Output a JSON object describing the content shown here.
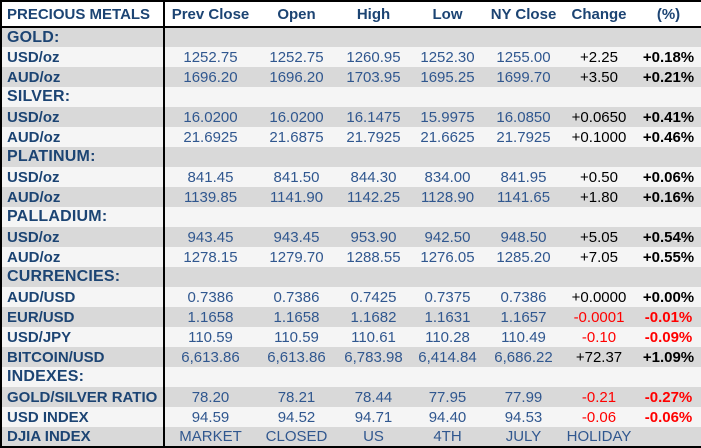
{
  "table": {
    "title_column": "PRECIOUS METALS",
    "columns": [
      "Prev Close",
      "Open",
      "High",
      "Low",
      "NY Close",
      "Change",
      "(%)"
    ],
    "colors": {
      "label_blue": "#1c4473",
      "number_blue": "#30578f",
      "negative_red": "#ff0000",
      "positive_black": "#000000",
      "row_gray": "#d9d9d9",
      "row_light": "#f5f5f5",
      "border_black": "#000000"
    },
    "rows": [
      {
        "type": "section",
        "label": "GOLD:",
        "shade": "gray",
        "cells": [
          "",
          "",
          "",
          "",
          "",
          "",
          ""
        ],
        "styles": [
          "num",
          "num",
          "num",
          "num",
          "num",
          "chg-pos",
          "pct-pos"
        ]
      },
      {
        "type": "data",
        "label": "USD/oz",
        "shade": "light",
        "cells": [
          "1252.75",
          "1252.75",
          "1260.95",
          "1252.30",
          "1255.00",
          "+2.25",
          "+0.18%"
        ],
        "styles": [
          "num",
          "num",
          "num",
          "num",
          "num",
          "chg-pos",
          "pct-pos"
        ]
      },
      {
        "type": "data",
        "label": "AUD/oz",
        "shade": "gray",
        "cells": [
          "1696.20",
          "1696.20",
          "1703.95",
          "1695.25",
          "1699.70",
          "+3.50",
          "+0.21%"
        ],
        "styles": [
          "num",
          "num",
          "num",
          "num",
          "num",
          "chg-pos",
          "pct-pos"
        ]
      },
      {
        "type": "section",
        "label": "SILVER:",
        "shade": "light",
        "cells": [
          "",
          "",
          "",
          "",
          "",
          "",
          ""
        ],
        "styles": [
          "num",
          "num",
          "num",
          "num",
          "num",
          "chg-pos",
          "pct-pos"
        ]
      },
      {
        "type": "data",
        "label": "USD/oz",
        "shade": "gray",
        "cells": [
          "16.0200",
          "16.0200",
          "16.1475",
          "15.9975",
          "16.0850",
          "+0.0650",
          "+0.41%"
        ],
        "styles": [
          "num",
          "num",
          "num",
          "num",
          "num",
          "chg-pos",
          "pct-pos"
        ]
      },
      {
        "type": "data",
        "label": "AUD/oz",
        "shade": "light",
        "cells": [
          "21.6925",
          "21.6875",
          "21.7925",
          "21.6625",
          "21.7925",
          "+0.1000",
          "+0.46%"
        ],
        "styles": [
          "num",
          "num",
          "num",
          "num",
          "num",
          "chg-pos",
          "pct-pos"
        ]
      },
      {
        "type": "section",
        "label": "PLATINUM:",
        "shade": "gray",
        "cells": [
          "",
          "",
          "",
          "",
          "",
          "",
          ""
        ],
        "styles": [
          "num",
          "num",
          "num",
          "num",
          "num",
          "chg-pos",
          "pct-pos"
        ]
      },
      {
        "type": "data",
        "label": "USD/oz",
        "shade": "light",
        "cells": [
          "841.45",
          "841.50",
          "844.30",
          "834.00",
          "841.95",
          "+0.50",
          "+0.06%"
        ],
        "styles": [
          "num",
          "num",
          "num",
          "num",
          "num",
          "chg-pos",
          "pct-pos"
        ]
      },
      {
        "type": "data",
        "label": "AUD/oz",
        "shade": "gray",
        "cells": [
          "1139.85",
          "1141.90",
          "1142.25",
          "1128.90",
          "1141.65",
          "+1.80",
          "+0.16%"
        ],
        "styles": [
          "num",
          "num",
          "num",
          "num",
          "num",
          "chg-pos",
          "pct-pos"
        ]
      },
      {
        "type": "section",
        "label": "PALLADIUM:",
        "shade": "light",
        "cells": [
          "",
          "",
          "",
          "",
          "",
          "",
          ""
        ],
        "styles": [
          "num",
          "num",
          "num",
          "num",
          "num",
          "chg-pos",
          "pct-pos"
        ]
      },
      {
        "type": "data",
        "label": "USD/oz",
        "shade": "gray",
        "cells": [
          "943.45",
          "943.45",
          "953.90",
          "942.50",
          "948.50",
          "+5.05",
          "+0.54%"
        ],
        "styles": [
          "num",
          "num",
          "num",
          "num",
          "num",
          "chg-pos",
          "pct-pos"
        ]
      },
      {
        "type": "data",
        "label": "AUD/oz",
        "shade": "light",
        "cells": [
          "1278.15",
          "1279.70",
          "1288.55",
          "1276.05",
          "1285.20",
          "+7.05",
          "+0.55%"
        ],
        "styles": [
          "num",
          "num",
          "num",
          "num",
          "num",
          "chg-pos",
          "pct-pos"
        ]
      },
      {
        "type": "section",
        "label": "CURRENCIES:",
        "shade": "gray",
        "cells": [
          "",
          "",
          "",
          "",
          "",
          "",
          ""
        ],
        "styles": [
          "num",
          "num",
          "num",
          "num",
          "num",
          "chg-pos",
          "pct-pos"
        ]
      },
      {
        "type": "data",
        "label": "AUD/USD",
        "shade": "light",
        "cells": [
          "0.7386",
          "0.7386",
          "0.7425",
          "0.7375",
          "0.7386",
          "+0.0000",
          "+0.00%"
        ],
        "styles": [
          "num",
          "num",
          "num",
          "num",
          "num",
          "chg-pos",
          "pct-pos"
        ]
      },
      {
        "type": "data",
        "label": "EUR/USD",
        "shade": "gray",
        "cells": [
          "1.1658",
          "1.1658",
          "1.1682",
          "1.1631",
          "1.1657",
          "-0.0001",
          "-0.01%"
        ],
        "styles": [
          "num",
          "num",
          "num",
          "num",
          "num",
          "chg-neg",
          "pct-neg"
        ]
      },
      {
        "type": "data",
        "label": "USD/JPY",
        "shade": "light",
        "cells": [
          "110.59",
          "110.59",
          "110.61",
          "110.28",
          "110.49",
          "-0.10",
          "-0.09%"
        ],
        "styles": [
          "num",
          "num",
          "num",
          "num",
          "num",
          "chg-neg",
          "pct-neg"
        ]
      },
      {
        "type": "data",
        "label": "BITCOIN/USD",
        "shade": "gray",
        "cells": [
          "6,613.86",
          "6,613.86",
          "6,783.98",
          "6,414.84",
          "6,686.22",
          "+72.37",
          "+1.09%"
        ],
        "styles": [
          "num",
          "num",
          "num",
          "num",
          "num",
          "chg-pos",
          "pct-pos"
        ]
      },
      {
        "type": "section",
        "label": "INDEXES:",
        "shade": "light",
        "cells": [
          "",
          "",
          "",
          "",
          "",
          "",
          ""
        ],
        "styles": [
          "num",
          "num",
          "num",
          "num",
          "num",
          "chg-pos",
          "pct-pos"
        ]
      },
      {
        "type": "data",
        "label": "GOLD/SILVER RATIO",
        "shade": "gray",
        "cells": [
          "78.20",
          "78.21",
          "78.44",
          "77.95",
          "77.99",
          "-0.21",
          "-0.27%"
        ],
        "styles": [
          "num",
          "num",
          "num",
          "num",
          "num",
          "chg-neg",
          "pct-neg"
        ]
      },
      {
        "type": "data",
        "label": "USD INDEX",
        "shade": "light",
        "cells": [
          "94.59",
          "94.52",
          "94.71",
          "94.40",
          "94.53",
          "-0.06",
          "-0.06%"
        ],
        "styles": [
          "num",
          "num",
          "num",
          "num",
          "num",
          "chg-neg",
          "pct-neg"
        ]
      },
      {
        "type": "data",
        "label": "DJIA INDEX",
        "shade": "gray",
        "cells": [
          "MARKET",
          "CLOSED",
          "US",
          "4TH",
          "JULY",
          "HOLIDAY",
          ""
        ],
        "styles": [
          "txt",
          "txt",
          "txt",
          "txt",
          "txt",
          "txt",
          "txt"
        ]
      }
    ]
  }
}
